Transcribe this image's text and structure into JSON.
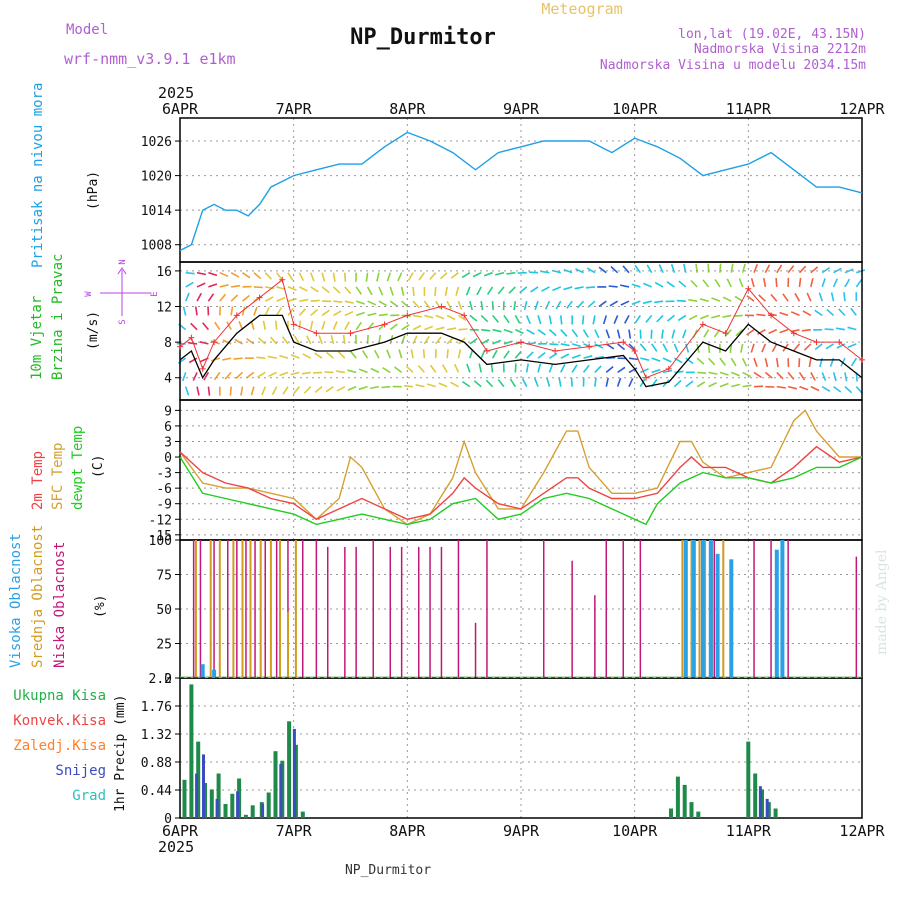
{
  "header": {
    "model_label": "Model",
    "model_name": "wrf-nmm_v3.9.1 e1km",
    "station_name": "NP_Durmitor",
    "meteogram_label": "Meteogram",
    "coords": "lon,lat (19.02E, 43.15N)",
    "elevation": "Nadmorska Visina 2212m",
    "model_elevation": "Nadmorska Visina u modelu 2034.15m",
    "year_top": "2025",
    "year_bottom": "2025",
    "footer_station": "NP_Durmitor",
    "credit": "made by Angel"
  },
  "colors": {
    "pressure": "#1ea0e6",
    "temp2m": "#ee4444",
    "sfc_temp": "#d6a030",
    "dewpt": "#22cc22",
    "high_cloud": "#2aa0e6",
    "mid_cloud": "#d39a20",
    "low_cloud": "#c0187a",
    "total_precip": "#1e8a4a",
    "snow": "#3b4cc0",
    "wind_label": "#22bb22",
    "wind_speed": "#000000",
    "gust": "#ee3333",
    "compass": "#bb44dd"
  },
  "chart_data": {
    "x_dates": [
      "6APR",
      "7APR",
      "8APR",
      "9APR",
      "10APR",
      "11APR",
      "12APR"
    ],
    "x_range_days": [
      0,
      6
    ],
    "panels": [
      {
        "type": "line",
        "id": "pressure",
        "label": "Pritisak na nivou mora",
        "unit": "(hPa)",
        "ylim": [
          1005,
          1030
        ],
        "yticks": [
          "1008",
          "1014",
          "1020",
          "1026"
        ],
        "ytick_values": [
          1008,
          1014,
          1020,
          1026
        ],
        "series": [
          {
            "name": "Pritisak na nivou mora",
            "x": [
              0,
              0.1,
              0.2,
              0.3,
              0.4,
              0.5,
              0.6,
              0.7,
              0.8,
              0.9,
              1.0,
              1.2,
              1.4,
              1.6,
              1.8,
              2.0,
              2.2,
              2.4,
              2.6,
              2.8,
              3.0,
              3.2,
              3.4,
              3.6,
              3.8,
              4.0,
              4.2,
              4.4,
              4.6,
              4.8,
              5.0,
              5.2,
              5.4,
              5.6,
              5.8,
              6.0
            ],
            "values": [
              1007,
              1008,
              1014,
              1015,
              1014,
              1014,
              1013,
              1015,
              1018,
              1019,
              1020,
              1021,
              1022,
              1022,
              1025,
              1027.5,
              1026,
              1024,
              1021,
              1024,
              1025,
              1026,
              1026,
              1026,
              1024,
              1026.5,
              1025,
              1023,
              1020,
              1021,
              1022,
              1024,
              1021,
              1018,
              1018,
              1017
            ]
          }
        ]
      },
      {
        "type": "line",
        "id": "wind",
        "label1": "10m Vjetar",
        "label2": "Brzina i Pravac",
        "unit": "(m/s)",
        "ylim": [
          1.5,
          17
        ],
        "yticks": [
          "4",
          "8",
          "12",
          "16"
        ],
        "ytick_values": [
          4,
          8,
          12,
          16
        ],
        "compass": [
          "N",
          "E",
          "S",
          "W"
        ],
        "series": [
          {
            "name": "speed",
            "x": [
              0,
              0.1,
              0.2,
              0.3,
              0.5,
              0.7,
              0.9,
              1.0,
              1.2,
              1.5,
              1.8,
              2.0,
              2.3,
              2.5,
              2.7,
              3.0,
              3.3,
              3.6,
              3.9,
              4.0,
              4.1,
              4.3,
              4.6,
              4.8,
              5.0,
              5.2,
              5.4,
              5.6,
              5.8,
              6.0
            ],
            "values": [
              6,
              7,
              4,
              6,
              9,
              11,
              11,
              8,
              7,
              7,
              8,
              9,
              9,
              8,
              5.5,
              6,
              5.5,
              6,
              6.5,
              5,
              3,
              3.5,
              8,
              7,
              10,
              8,
              7,
              6,
              6,
              4
            ]
          },
          {
            "name": "gust",
            "x": [
              0,
              0.1,
              0.2,
              0.3,
              0.5,
              0.7,
              0.9,
              1.0,
              1.2,
              1.5,
              1.8,
              2.0,
              2.3,
              2.5,
              2.7,
              3.0,
              3.3,
              3.6,
              3.9,
              4.0,
              4.1,
              4.3,
              4.6,
              4.8,
              5.0,
              5.2,
              5.4,
              5.6,
              5.8,
              6.0
            ],
            "values": [
              7.5,
              8.5,
              5,
              8,
              11,
              13,
              15,
              10,
              9,
              9,
              10,
              11,
              12,
              11,
              7,
              8,
              7,
              7.5,
              8,
              7,
              4,
              5,
              10,
              9,
              14,
              11,
              9,
              8,
              8,
              6
            ]
          }
        ]
      },
      {
        "type": "line",
        "id": "temperature",
        "label1": "2m Temp",
        "label2": "SFC Temp",
        "label3": "dewpt Temp",
        "unit": "(C)",
        "ylim": [
          -16,
          11
        ],
        "yticks": [
          "9",
          "6",
          "3",
          "0",
          "-3",
          "-6",
          "-9",
          "-12",
          "-15"
        ],
        "ytick_values": [
          9,
          6,
          3,
          0,
          -3,
          -6,
          -9,
          -12,
          -15
        ],
        "series": [
          {
            "name": "2m Temp",
            "x": [
              0,
              0.2,
              0.4,
              0.6,
              0.8,
              1.0,
              1.2,
              1.4,
              1.6,
              1.8,
              2.0,
              2.2,
              2.4,
              2.5,
              2.6,
              2.8,
              3.0,
              3.2,
              3.4,
              3.5,
              3.6,
              3.8,
              4.0,
              4.2,
              4.4,
              4.5,
              4.6,
              4.8,
              5.0,
              5.2,
              5.4,
              5.6,
              5.8,
              6.0
            ],
            "values": [
              1,
              -3,
              -5,
              -6,
              -8,
              -9,
              -12,
              -10,
              -8,
              -10,
              -12,
              -11,
              -7,
              -4,
              -6,
              -9,
              -10,
              -7,
              -4,
              -4,
              -6,
              -8,
              -8,
              -7,
              -2,
              0,
              -2,
              -2,
              -4,
              -5,
              -2,
              2,
              -1,
              0
            ]
          },
          {
            "name": "SFC Temp",
            "x": [
              0,
              0.2,
              0.4,
              0.6,
              0.8,
              1.0,
              1.2,
              1.4,
              1.5,
              1.6,
              1.8,
              2.0,
              2.2,
              2.4,
              2.5,
              2.6,
              2.8,
              3.0,
              3.2,
              3.4,
              3.5,
              3.6,
              3.8,
              4.0,
              4.2,
              4.4,
              4.5,
              4.6,
              4.8,
              5.0,
              5.2,
              5.4,
              5.5,
              5.6,
              5.8,
              6.0
            ],
            "values": [
              1,
              -5,
              -6,
              -6,
              -7,
              -8,
              -12,
              -8,
              0,
              -2,
              -10,
              -13,
              -11,
              -4,
              3,
              -3,
              -10,
              -10,
              -3,
              5,
              5,
              -2,
              -7,
              -7,
              -6,
              3,
              3,
              -1,
              -4,
              -3,
              -2,
              7,
              9,
              5,
              0,
              0
            ]
          },
          {
            "name": "dewpt Temp",
            "x": [
              0,
              0.2,
              0.4,
              0.6,
              0.8,
              1.0,
              1.2,
              1.4,
              1.6,
              1.8,
              2.0,
              2.2,
              2.4,
              2.6,
              2.8,
              3.0,
              3.2,
              3.4,
              3.6,
              3.8,
              4.0,
              4.1,
              4.2,
              4.4,
              4.6,
              4.8,
              5.0,
              5.2,
              5.4,
              5.6,
              5.8,
              6.0
            ],
            "values": [
              0,
              -7,
              -8,
              -9,
              -10,
              -11,
              -13,
              -12,
              -11,
              -12,
              -13,
              -12,
              -9,
              -8,
              -12,
              -11,
              -8,
              -7,
              -8,
              -10,
              -12,
              -13,
              -9,
              -5,
              -3,
              -4,
              -4,
              -5,
              -4,
              -2,
              -2,
              0
            ]
          }
        ]
      },
      {
        "type": "bar",
        "id": "cloud",
        "label1": "Visoka Oblacnost",
        "label2": "Srednja Oblacnost",
        "label3": "Niska Oblacnost",
        "unit": "(%)",
        "ylim": [
          0,
          100
        ],
        "yticks": [
          "100",
          "75",
          "50",
          "25",
          "0"
        ],
        "ytick_values": [
          100,
          75,
          50,
          25,
          0
        ],
        "series": [
          {
            "name": "Niska Oblacnost",
            "x": [
              0.12,
              0.18,
              0.3,
              0.42,
              0.5,
              0.58,
              0.66,
              0.75,
              0.85,
              0.95,
              1.08,
              1.2,
              1.3,
              1.45,
              1.55,
              1.7,
              1.85,
              1.95,
              2.1,
              2.2,
              2.3,
              2.45,
              2.6,
              2.7,
              3.2,
              3.45,
              3.65,
              3.75,
              3.9,
              4.05,
              4.5,
              4.6,
              4.7,
              5.05,
              5.2,
              5.35,
              5.95
            ],
            "values": [
              100,
              100,
              100,
              100,
              100,
              100,
              100,
              100,
              100,
              100,
              100,
              100,
              95,
              95,
              95,
              100,
              95,
              95,
              95,
              95,
              95,
              100,
              40,
              100,
              100,
              85,
              60,
              100,
              100,
              100,
              100,
              100,
              100,
              100,
              100,
              100,
              88
            ]
          },
          {
            "name": "Srednja Oblacnost",
            "x": [
              0.14,
              0.27,
              0.35,
              0.47,
              0.55,
              0.62,
              0.71,
              0.8,
              0.88,
              0.95,
              1.02,
              4.42,
              4.5,
              4.57,
              4.62,
              4.68,
              4.78
            ],
            "values": [
              100,
              100,
              100,
              100,
              100,
              100,
              100,
              100,
              100,
              48,
              100,
              100,
              100,
              100,
              100,
              100,
              100
            ]
          },
          {
            "name": "Visoka Oblacnost",
            "x": [
              0.2,
              0.3,
              4.45,
              4.52,
              4.6,
              4.67,
              4.73,
              4.85,
              5.25,
              5.3
            ],
            "values": [
              10,
              6,
              100,
              100,
              100,
              100,
              90,
              86,
              93,
              100
            ]
          }
        ]
      },
      {
        "type": "bar",
        "id": "precip",
        "labels": [
          "Ukupna Kisa",
          "Konvek.Kisa",
          "Zaledj.Kisa",
          "Snijeg",
          "Grad"
        ],
        "label_colors": [
          "#1fb14a",
          "#ee4444",
          "#ff7f2a",
          "#3b4cc0",
          "#2bbfbf"
        ],
        "unit": "1hr Precip (mm)",
        "ylim": [
          0,
          2.2
        ],
        "yticks": [
          "2.2",
          "1.76",
          "1.32",
          "0.88",
          "0.44",
          "0"
        ],
        "ytick_values": [
          2.2,
          1.76,
          1.32,
          0.88,
          0.44,
          0
        ],
        "series": [
          {
            "name": "Ukupna Kisa",
            "x": [
              0.04,
              0.1,
              0.16,
              0.22,
              0.28,
              0.34,
              0.4,
              0.46,
              0.52,
              0.58,
              0.64,
              0.72,
              0.78,
              0.84,
              0.9,
              0.96,
              1.02,
              1.08,
              4.32,
              4.38,
              4.44,
              4.5,
              4.56,
              5.0,
              5.06,
              5.12,
              5.18,
              5.24
            ],
            "values": [
              0.6,
              2.1,
              1.2,
              0.55,
              0.45,
              0.7,
              0.22,
              0.38,
              0.62,
              0.05,
              0.2,
              0.25,
              0.4,
              1.05,
              0.9,
              1.52,
              1.15,
              0.1,
              0.15,
              0.65,
              0.52,
              0.25,
              0.1,
              1.2,
              0.7,
              0.45,
              0.25,
              0.15
            ]
          },
          {
            "name": "Snijeg",
            "x": [
              0.12,
              0.18,
              0.3,
              0.48,
              0.7,
              0.86,
              0.98,
              5.08,
              5.14
            ],
            "values": [
              0.7,
              1.0,
              0.3,
              0.42,
              0.22,
              0.85,
              1.4,
              0.5,
              0.3
            ]
          }
        ]
      }
    ]
  }
}
